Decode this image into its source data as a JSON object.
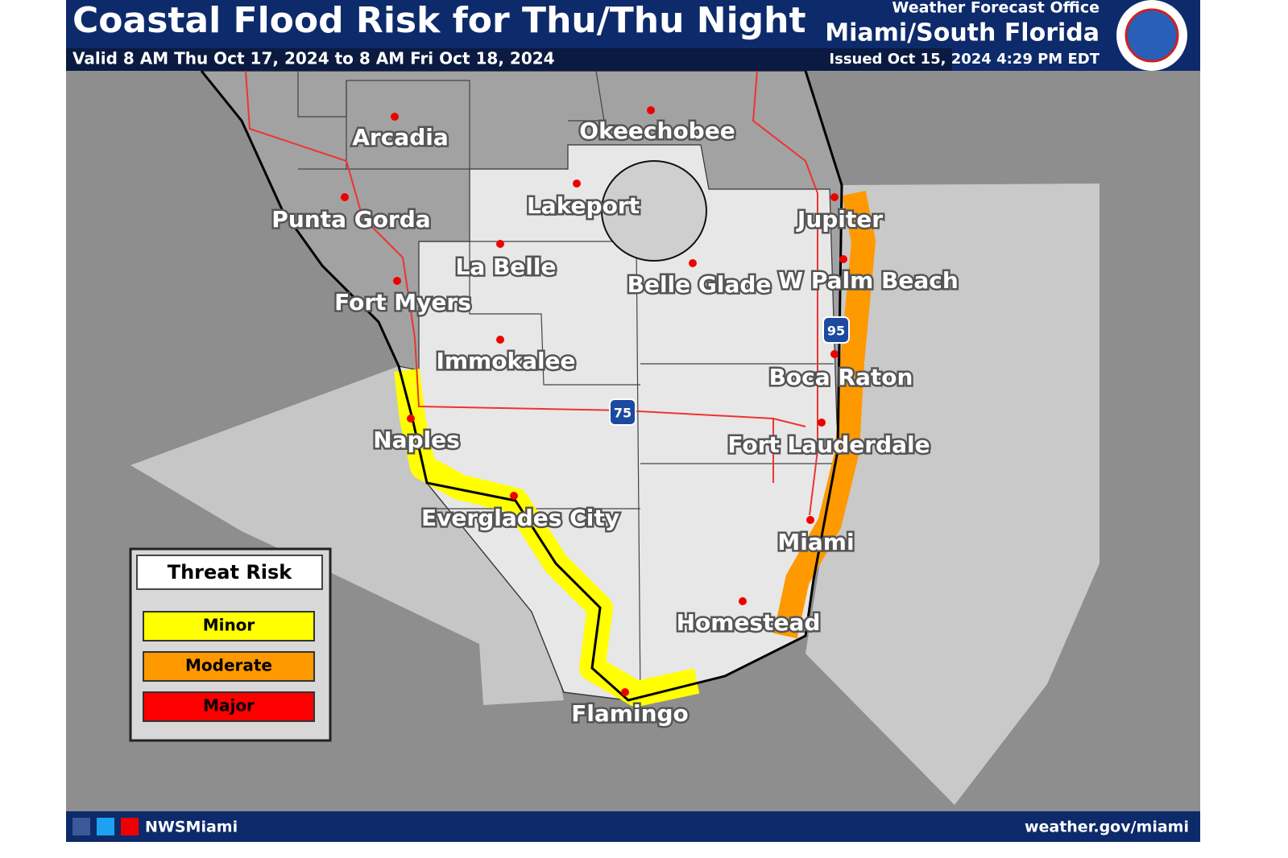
{
  "header": {
    "title": "Coastal Flood Risk for Thu/Thu Night",
    "valid": "Valid 8 AM Thu Oct 17, 2024 to 8 AM Fri Oct 18, 2024",
    "office_label": "Weather Forecast Office",
    "office": "Miami/South Florida",
    "issued": "Issued Oct 15, 2024 4:29 PM EDT"
  },
  "cities": [
    {
      "name": "Arcadia"
    },
    {
      "name": "Okeechobee"
    },
    {
      "name": "Lakeport"
    },
    {
      "name": "Punta Gorda"
    },
    {
      "name": "Jupiter"
    },
    {
      "name": "La Belle"
    },
    {
      "name": "Belle Glade"
    },
    {
      "name": "W Palm Beach"
    },
    {
      "name": "Fort Myers"
    },
    {
      "name": "Immokalee"
    },
    {
      "name": "Boca Raton"
    },
    {
      "name": "Naples"
    },
    {
      "name": "Fort Lauderdale"
    },
    {
      "name": "Everglades City"
    },
    {
      "name": "Miami"
    },
    {
      "name": "Homestead"
    },
    {
      "name": "Flamingo"
    }
  ],
  "highways": [
    "75",
    "95"
  ],
  "legend": {
    "title": "Threat Risk",
    "levels": [
      {
        "name": "Minor",
        "color": "#ffff00"
      },
      {
        "name": "Moderate",
        "color": "#ff9900"
      },
      {
        "name": "Major",
        "color": "#ff0000"
      }
    ]
  },
  "footer": {
    "handle": "NWSMiami",
    "url": "weather.gov/miami"
  }
}
